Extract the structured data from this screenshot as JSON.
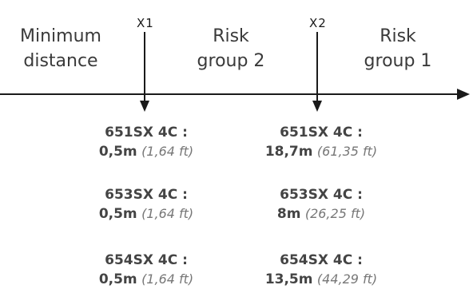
{
  "zones": {
    "minimum": [
      "Minimum",
      "distance"
    ],
    "group2": [
      "Risk",
      "group 2"
    ],
    "group1": [
      "Risk",
      "group 1"
    ]
  },
  "markers": {
    "x1": "X1",
    "x2": "X2"
  },
  "x1_values": [
    {
      "model": "651SX 4C :",
      "metric": "0,5m",
      "imperial": "(1,64 ft)"
    },
    {
      "model": "653SX 4C :",
      "metric": "0,5m",
      "imperial": "(1,64 ft)"
    },
    {
      "model": "654SX 4C :",
      "metric": "0,5m",
      "imperial": "(1,64 ft)"
    }
  ],
  "x2_values": [
    {
      "model": "651SX 4C :",
      "metric": "18,7m",
      "imperial": "(61,35 ft)"
    },
    {
      "model": "653SX 4C :",
      "metric": "8m",
      "imperial": "(26,25 ft)"
    },
    {
      "model": "654SX 4C :",
      "metric": "13,5m",
      "imperial": "(44,29 ft)"
    }
  ],
  "colors": {
    "line": "#1a1a1a",
    "text": "#3a3a3a",
    "imperial": "#777777"
  }
}
